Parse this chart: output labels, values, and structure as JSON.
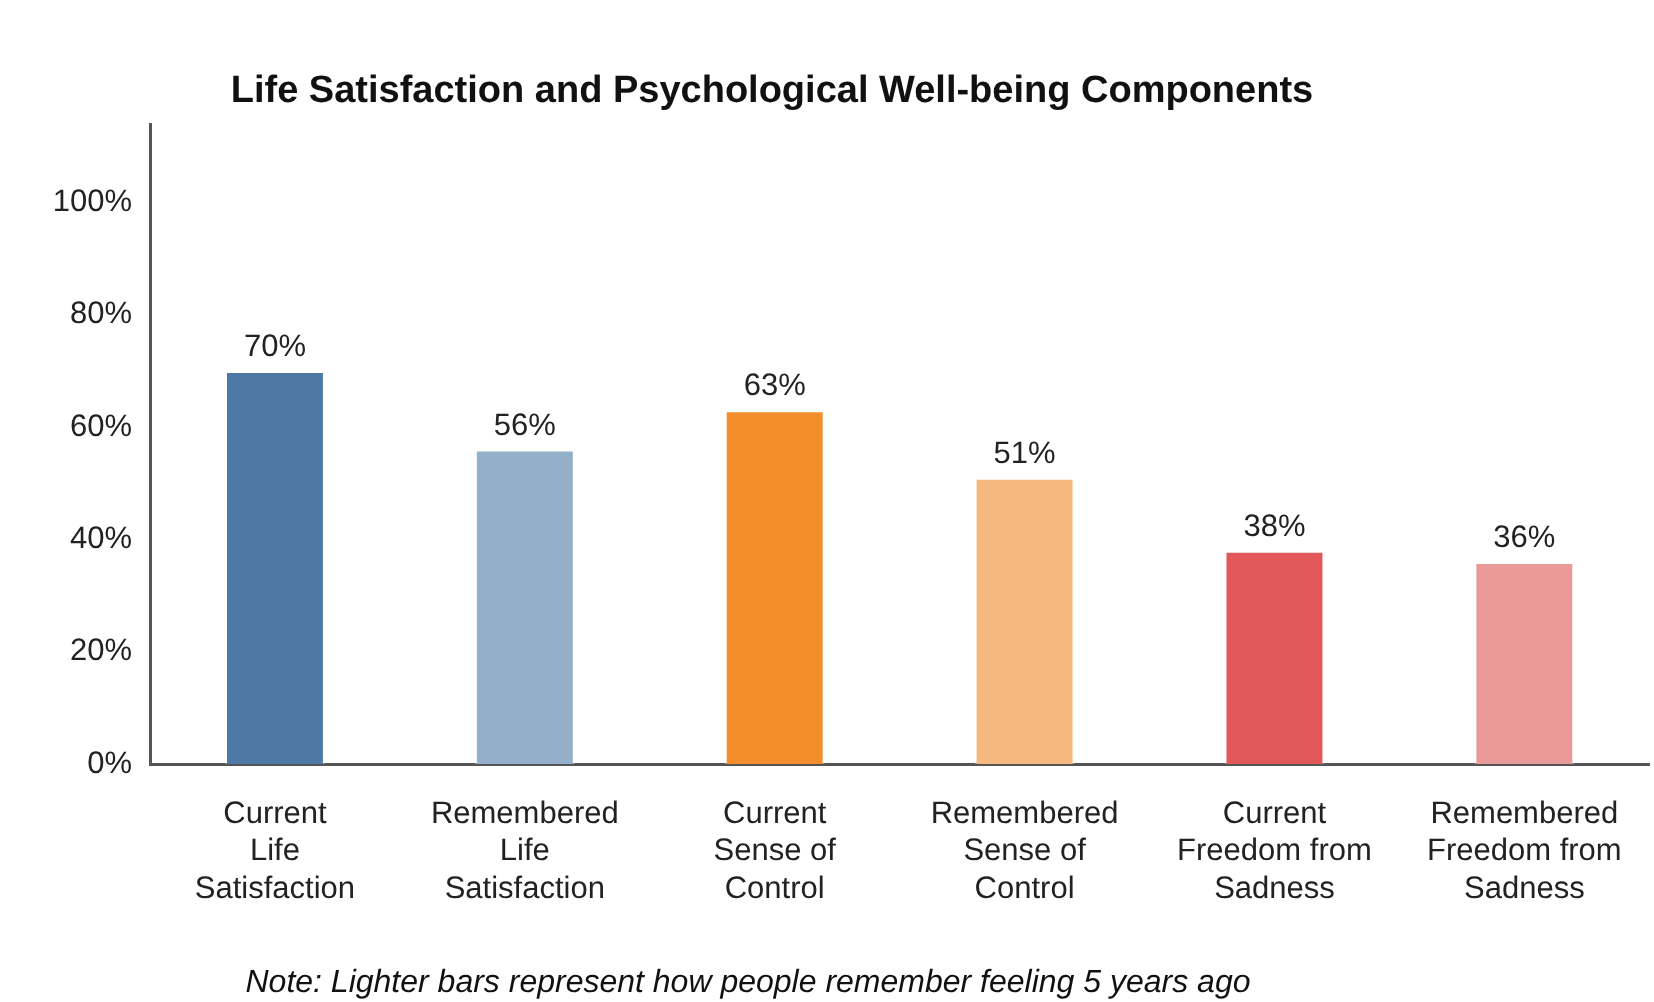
{
  "chart_data": {
    "type": "bar",
    "title": "Life Satisfaction and Psychological Well-being Components",
    "categories": [
      "Current\nLife\nSatisfaction",
      "Remembered\nLife\nSatisfaction",
      "Current\nSense of\nControl",
      "Remembered\nSense of\nControl",
      "Current\nFreedom from\nSadness",
      "Remembered\nFreedom from\nSadness"
    ],
    "values": [
      70,
      56,
      63,
      51,
      38,
      36
    ],
    "colors": [
      "#4e79a7",
      "#94afc9",
      "#f28e2b",
      "#f5b97f",
      "#e1575a",
      "#ea9999"
    ],
    "value_labels": [
      "70%",
      "56%",
      "63%",
      "51%",
      "38%",
      "36%"
    ],
    "ylim": [
      0,
      114
    ],
    "yticks": [
      {
        "value": 0,
        "label": "0%"
      },
      {
        "value": 20,
        "label": "20%"
      },
      {
        "value": 40,
        "label": "40%"
      },
      {
        "value": 60,
        "label": "60%"
      },
      {
        "value": 80,
        "label": "80%"
      },
      {
        "value": 100,
        "label": "100%"
      }
    ],
    "annotations": [
      "Note: Lighter bars represent how people remember feeling 5 years ago"
    ]
  }
}
